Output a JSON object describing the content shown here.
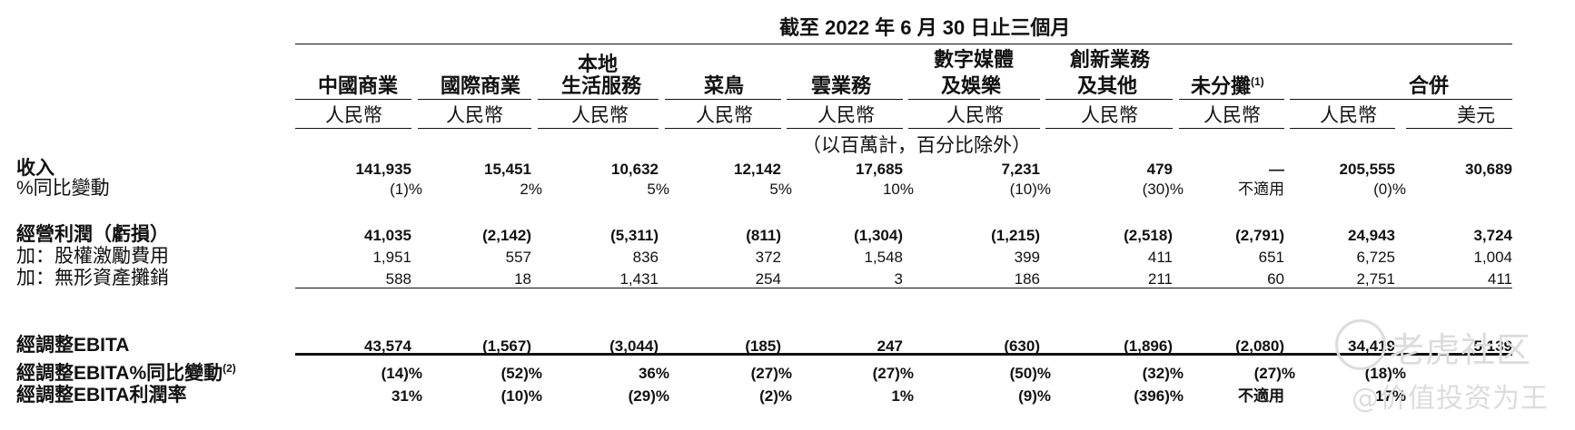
{
  "title": "截至 2022 年 6 月 30 日止三個月",
  "unit_note": "（以百萬計，百分比除外）",
  "columns": [
    {
      "l1": "",
      "l2": "中國商業",
      "currency": "人民幣"
    },
    {
      "l1": "",
      "l2": "國際商業",
      "currency": "人民幣"
    },
    {
      "l1": "本地",
      "l2": "生活服務",
      "currency": "人民幣"
    },
    {
      "l1": "",
      "l2": "菜鳥",
      "currency": "人民幣"
    },
    {
      "l1": "",
      "l2": "雲業務",
      "currency": "人民幣"
    },
    {
      "l1": "數字媒體",
      "l2": "及娛樂",
      "currency": "人民幣"
    },
    {
      "l1": "創新業務",
      "l2": "及其他",
      "currency": "人民幣"
    },
    {
      "l1": "",
      "l2": "未分攤",
      "sup": "(1)",
      "currency": "人民幣"
    },
    {
      "l1": "",
      "l2": "",
      "currency": "人民幣"
    },
    {
      "l1": "",
      "l2": "",
      "currency": "美元"
    }
  ],
  "combined_label": "合併",
  "rows": [
    {
      "label": "收入",
      "bold": true,
      "values": [
        "141,935",
        "15,451",
        "10,632",
        "12,142",
        "17,685",
        "7,231",
        "479",
        "—",
        "205,555",
        "30,689"
      ]
    },
    {
      "label": "%同比變動",
      "bold": false,
      "values": [
        "(1)%",
        "2%",
        "5%",
        "5%",
        "10%",
        "(10)%",
        "(30)%",
        "不適用",
        "(0)%",
        ""
      ]
    },
    {
      "label": "經營利潤（虧損）",
      "bold": true,
      "values": [
        "41,035",
        "(2,142)",
        "(5,311)",
        "(811)",
        "(1,304)",
        "(1,215)",
        "(2,518)",
        "(2,791)",
        "24,943",
        "3,724"
      ]
    },
    {
      "label": "加：股權激勵費用",
      "bold": false,
      "values": [
        "1,951",
        "557",
        "836",
        "372",
        "1,548",
        "399",
        "411",
        "651",
        "6,725",
        "1,004"
      ]
    },
    {
      "label": "加：無形資產攤銷",
      "bold": false,
      "values": [
        "588",
        "18",
        "1,431",
        "254",
        "3",
        "186",
        "211",
        "60",
        "2,751",
        "411"
      ]
    },
    {
      "label": "經調整EBITA",
      "bold": true,
      "values": [
        "43,574",
        "(1,567)",
        "(3,044)",
        "(185)",
        "247",
        "(630)",
        "(1,896)",
        "(2,080)",
        "34,419",
        "5,139"
      ]
    },
    {
      "label": "經調整EBITA%同比變動",
      "sup": "(2)",
      "bold": true,
      "values": [
        "(14)%",
        "(52)%",
        "36%",
        "(27)%",
        "(27)%",
        "(50)%",
        "(32)%",
        "(27)%",
        "(18)%",
        ""
      ]
    },
    {
      "label": "經調整EBITA利潤率",
      "bold": true,
      "values": [
        "31%",
        "(10)%",
        "(29)%",
        "(2)%",
        "1%",
        "(9)%",
        "(396)%",
        "不適用",
        "17%",
        ""
      ]
    }
  ],
  "watermark": {
    "brand": "老虎社区",
    "handle": "@价值投资为王"
  }
}
